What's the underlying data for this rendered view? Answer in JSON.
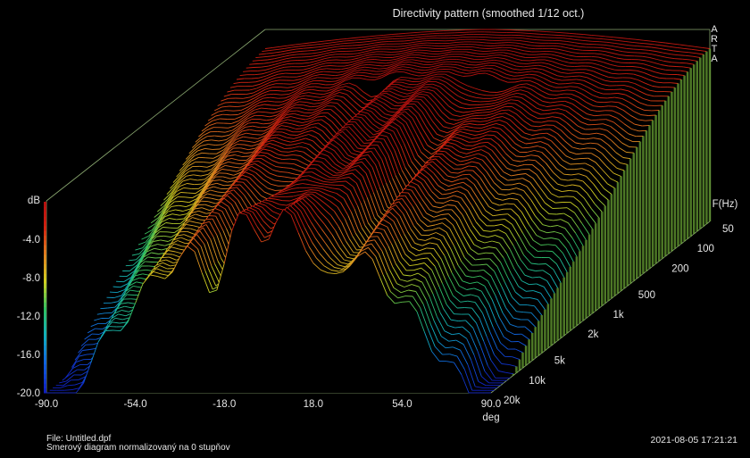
{
  "chart_data": {
    "type": "waterfall-3d",
    "title": "Directivity pattern (smoothed 1/12 oct.)",
    "brand_vertical": "ARTA",
    "x_axis": {
      "label": "deg",
      "range": [
        -90,
        90
      ],
      "ticks": [
        -90.0,
        -54.0,
        -18.0,
        18.0,
        54.0,
        90.0
      ],
      "tick_labels": [
        "-90.0",
        "-54.0",
        "-18.0",
        "18.0",
        "54.0",
        "90.0"
      ]
    },
    "y_axis": {
      "label": "dB",
      "range": [
        -20,
        0
      ],
      "ticks": [
        -4.0,
        -8.0,
        -12.0,
        -16.0,
        -20.0
      ],
      "tick_labels": [
        "-4.0",
        "-8.0",
        "-12.0",
        "-16.0",
        "-20.0"
      ]
    },
    "z_axis": {
      "label": "F(Hz)",
      "range": [
        50,
        20000
      ],
      "scale": "log",
      "ticks": [
        50,
        100,
        200,
        500,
        1000,
        2000,
        5000,
        10000,
        20000
      ],
      "tick_labels": [
        "50",
        "100",
        "200",
        "500",
        "1k",
        "2k",
        "5k",
        "10k",
        "20k"
      ]
    },
    "colorbar": {
      "stops": [
        "#1020c0",
        "#1060e0",
        "#10b0c0",
        "#30c060",
        "#d0d020",
        "#e08020",
        "#d02010",
        "#b01010"
      ]
    },
    "description_of_surface": "Normalized level vs angle; near 0 dB across angles at low frequency, narrowing beam with deep off-axis drop at high frequency",
    "frequencies": [
      50,
      100,
      200,
      500,
      1000,
      2000,
      5000,
      10000,
      20000
    ]
  },
  "footer": {
    "file_line": "File: Untitled.dpf",
    "subtitle_line": "Smerový diagram normalizovaný na 0 stupňov",
    "timestamp": "2021-08-05  17:21:21"
  },
  "colors": {
    "background": "#000000",
    "box_lines": "#8aa870",
    "text": "#e6e6e6"
  }
}
